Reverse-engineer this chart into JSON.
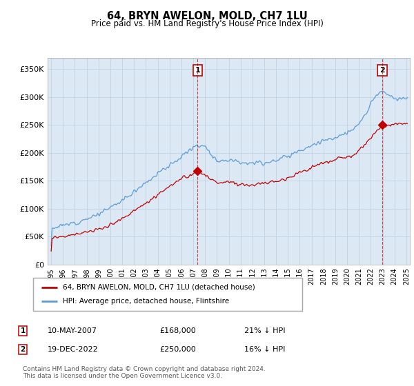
{
  "title": "64, BRYN AWELON, MOLD, CH7 1LU",
  "subtitle": "Price paid vs. HM Land Registry's House Price Index (HPI)",
  "ylim": [
    0,
    370000
  ],
  "yticks": [
    0,
    50000,
    100000,
    150000,
    200000,
    250000,
    300000,
    350000
  ],
  "ytick_labels": [
    "£0",
    "£50K",
    "£100K",
    "£150K",
    "£200K",
    "£250K",
    "£300K",
    "£350K"
  ],
  "xlim_start": 1994.7,
  "xlim_end": 2025.3,
  "xtick_years": [
    1995,
    1996,
    1997,
    1998,
    1999,
    2000,
    2001,
    2002,
    2003,
    2004,
    2005,
    2006,
    2007,
    2008,
    2009,
    2010,
    2011,
    2012,
    2013,
    2014,
    2015,
    2016,
    2017,
    2018,
    2019,
    2020,
    2021,
    2022,
    2023,
    2024,
    2025
  ],
  "hpi_color": "#5b9bd5",
  "sale_color": "#c00000",
  "marker1_date": 2007.36,
  "marker1_price": 168000,
  "marker2_date": 2022.96,
  "marker2_price": 250000,
  "legend_line1": "64, BRYN AWELON, MOLD, CH7 1LU (detached house)",
  "legend_line2": "HPI: Average price, detached house, Flintshire",
  "note1_date": "10-MAY-2007",
  "note1_price": "£168,000",
  "note1_hpi": "21% ↓ HPI",
  "note2_date": "19-DEC-2022",
  "note2_price": "£250,000",
  "note2_hpi": "16% ↓ HPI",
  "footer": "Contains HM Land Registry data © Crown copyright and database right 2024.\nThis data is licensed under the Open Government Licence v3.0.",
  "bg_color": "#dce9f5",
  "plot_bg": "#ffffff",
  "grid_color": "#b8cfe0"
}
